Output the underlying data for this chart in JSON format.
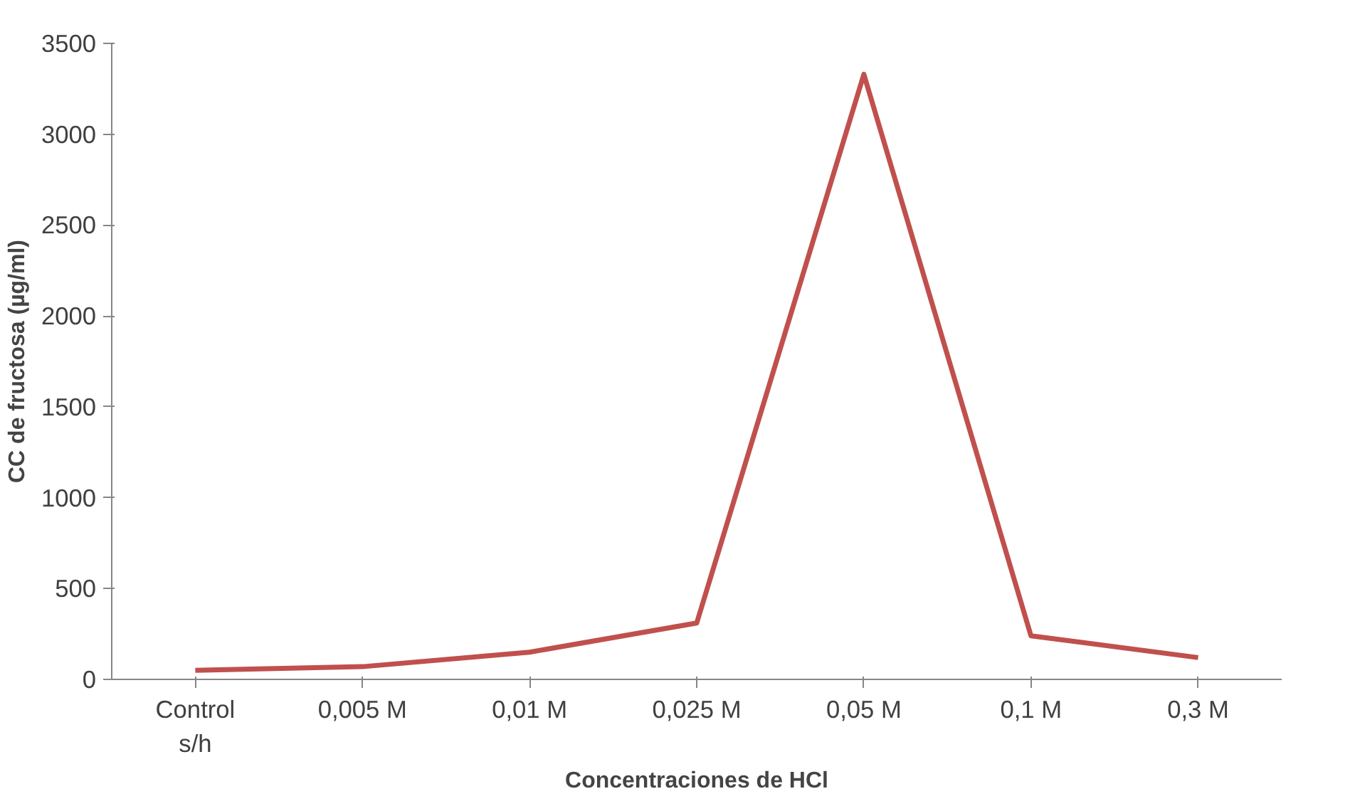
{
  "chart_data": {
    "type": "line",
    "xlabel": "Concentraciones de HCl",
    "ylabel": "CC de fructosa (µg/ml)",
    "categories": [
      "Control\ns/h",
      "0,005 M",
      "0,01 M",
      "0,025 M",
      "0,05 M",
      "0,1 M",
      "0,3 M"
    ],
    "series": [
      {
        "color": "#c0504d",
        "values": [
          50,
          70,
          150,
          310,
          3330,
          240,
          120
        ]
      }
    ],
    "ylim": [
      0,
      3500
    ],
    "yticks": [
      0,
      500,
      1000,
      1500,
      2000,
      2500,
      3000,
      3500
    ],
    "grid": false,
    "marker": "none",
    "line_style": "solid"
  }
}
